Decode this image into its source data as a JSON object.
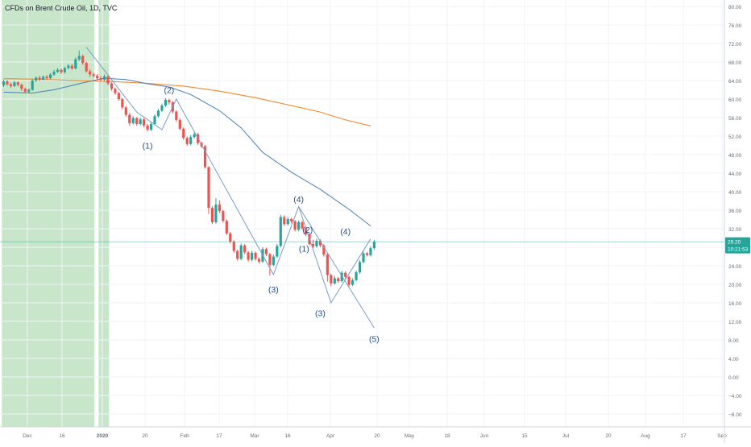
{
  "chart_data": {
    "type": "candlestick",
    "title": "CFDs on Brent Crude Oil, 1D, TVC",
    "colors": {
      "background": "#ffffff",
      "grid": "#f0f3fa",
      "up": "#26a69a",
      "down": "#ef5350",
      "highlight": "#c8e6c9",
      "ma_fast": "#4a7fb0",
      "ma_slow": "#f5862c",
      "wave_lines": "#7a9cc6",
      "wave_labels": "#1e4f8c",
      "price_badge": "#26a69a",
      "current_price_line": "#26a69a",
      "axis_text": "#6a6d78",
      "axis_line": "#d1d4dc"
    },
    "x_axis": {
      "ticks": [
        "Dec",
        "16",
        "2020",
        "20",
        "Feb",
        "17",
        "Mar",
        "16",
        "Apr",
        "20",
        "May",
        "18",
        "Jun",
        "15",
        "Jul",
        "20",
        "Aug",
        "17",
        "Sep"
      ],
      "bold": [
        "2020"
      ]
    },
    "y_axis": {
      "range": [
        -10,
        82
      ],
      "ticks": [
        "80.00",
        "76.00",
        "72.00",
        "68.00",
        "64.00",
        "60.00",
        "56.00",
        "52.00",
        "48.00",
        "44.00",
        "40.00",
        "36.00",
        "32.00",
        "28.00",
        "24.00",
        "20.00",
        "16.00",
        "12.00",
        "8.00",
        "4.00",
        "0.00",
        "−4.00",
        "−8.00"
      ]
    },
    "current_price": {
      "value": 29.2,
      "label": "29.20",
      "countdown": "10:21:53"
    },
    "candles": [
      [
        63.0,
        63.8,
        64.2,
        62.6
      ],
      [
        63.8,
        63.2,
        64.1,
        62.9
      ],
      [
        63.2,
        62.8,
        63.5,
        62.4
      ],
      [
        62.8,
        63.6,
        63.9,
        62.6
      ],
      [
        63.6,
        63.1,
        63.8,
        62.7
      ],
      [
        63.1,
        62.2,
        63.3,
        61.8
      ],
      [
        62.2,
        61.6,
        62.5,
        61.3
      ],
      [
        61.6,
        62.0,
        62.3,
        61.4
      ],
      [
        62.0,
        64.0,
        64.3,
        61.8
      ],
      [
        64.0,
        64.6,
        64.9,
        63.7
      ],
      [
        64.6,
        64.2,
        65.0,
        63.9
      ],
      [
        64.2,
        64.8,
        65.1,
        64.0
      ],
      [
        64.8,
        64.5,
        65.2,
        64.2
      ],
      [
        64.5,
        65.3,
        65.6,
        64.3
      ],
      [
        65.3,
        65.9,
        66.3,
        65.0
      ],
      [
        65.9,
        66.3,
        66.7,
        65.6
      ],
      [
        66.3,
        65.8,
        66.6,
        65.4
      ],
      [
        65.8,
        66.7,
        67.0,
        65.5
      ],
      [
        66.7,
        67.2,
        67.6,
        66.4
      ],
      [
        67.2,
        66.6,
        67.6,
        66.3
      ],
      [
        66.6,
        68.6,
        69.0,
        66.4
      ],
      [
        68.6,
        69.3,
        70.5,
        68.2
      ],
      [
        69.3,
        67.8,
        69.6,
        67.4
      ],
      [
        67.8,
        66.0,
        68.1,
        65.7
      ],
      [
        66.0,
        65.3,
        66.4,
        64.8
      ],
      [
        65.3,
        65.0,
        65.7,
        64.6
      ],
      [
        65.0,
        64.5,
        65.4,
        64.2
      ],
      [
        64.5,
        64.2,
        65.0,
        63.8
      ],
      [
        64.2,
        64.9,
        65.3,
        63.9
      ],
      [
        64.9,
        63.4,
        65.1,
        63.0
      ],
      [
        63.4,
        62.2,
        63.6,
        61.8
      ],
      [
        62.2,
        61.3,
        62.5,
        60.9
      ],
      [
        61.3,
        60.0,
        61.6,
        59.6
      ],
      [
        60.0,
        58.2,
        60.3,
        57.8
      ],
      [
        58.2,
        56.6,
        58.5,
        56.2
      ],
      [
        56.6,
        54.8,
        57.0,
        54.3
      ],
      [
        54.8,
        55.9,
        56.3,
        54.5
      ],
      [
        55.9,
        54.6,
        56.1,
        54.2
      ],
      [
        54.6,
        55.6,
        56.0,
        54.3
      ],
      [
        55.6,
        54.3,
        55.9,
        53.9
      ],
      [
        54.3,
        53.4,
        54.6,
        53.0
      ],
      [
        53.4,
        54.6,
        55.0,
        53.1
      ],
      [
        54.6,
        56.3,
        56.7,
        54.4
      ],
      [
        56.3,
        57.5,
        57.9,
        56.0
      ],
      [
        57.5,
        58.6,
        59.0,
        57.2
      ],
      [
        58.6,
        59.8,
        60.2,
        58.3
      ],
      [
        59.8,
        59.3,
        60.1,
        58.8
      ],
      [
        59.3,
        57.3,
        59.6,
        56.9
      ],
      [
        57.3,
        55.5,
        57.6,
        55.1
      ],
      [
        55.5,
        53.6,
        55.8,
        53.2
      ],
      [
        53.6,
        51.6,
        53.9,
        51.2
      ],
      [
        51.6,
        50.3,
        51.9,
        49.9
      ],
      [
        50.3,
        51.8,
        52.2,
        50.0
      ],
      [
        51.8,
        52.4,
        52.8,
        51.5
      ],
      [
        52.4,
        50.5,
        52.7,
        50.1
      ],
      [
        50.5,
        49.8,
        50.8,
        49.4
      ],
      [
        49.8,
        45.3,
        50.1,
        45.0
      ],
      [
        45.3,
        36.5,
        45.5,
        35.2
      ],
      [
        36.5,
        33.4,
        36.9,
        33.0
      ],
      [
        33.4,
        37.2,
        38.6,
        33.1
      ],
      [
        37.2,
        35.8,
        38.1,
        35.4
      ],
      [
        35.8,
        33.7,
        36.1,
        33.3
      ],
      [
        33.7,
        31.0,
        34.0,
        30.6
      ],
      [
        31.0,
        29.2,
        31.3,
        28.8
      ],
      [
        29.2,
        27.2,
        29.5,
        26.8
      ],
      [
        27.2,
        25.5,
        27.5,
        25.1
      ],
      [
        25.5,
        28.4,
        28.8,
        25.2
      ],
      [
        28.4,
        26.9,
        28.7,
        26.5
      ],
      [
        26.9,
        25.3,
        27.2,
        24.9
      ],
      [
        25.3,
        26.8,
        27.2,
        25.0
      ],
      [
        26.8,
        25.5,
        27.1,
        25.1
      ],
      [
        25.5,
        24.9,
        25.8,
        24.5
      ],
      [
        24.9,
        27.6,
        28.0,
        24.6
      ],
      [
        27.6,
        26.5,
        27.9,
        26.1
      ],
      [
        26.5,
        24.2,
        26.8,
        21.9
      ],
      [
        24.2,
        26.0,
        26.4,
        23.9
      ],
      [
        26.0,
        28.3,
        28.7,
        25.7
      ],
      [
        28.3,
        34.5,
        35.0,
        28.0
      ],
      [
        34.5,
        33.0,
        34.9,
        32.6
      ],
      [
        33.0,
        34.1,
        34.5,
        32.7
      ],
      [
        34.1,
        33.6,
        34.4,
        33.2
      ],
      [
        33.6,
        31.8,
        33.9,
        31.4
      ],
      [
        31.8,
        33.4,
        33.8,
        31.5
      ],
      [
        33.4,
        32.1,
        33.7,
        31.7
      ],
      [
        32.1,
        30.8,
        32.4,
        30.4
      ],
      [
        30.8,
        28.7,
        31.1,
        28.3
      ],
      [
        28.7,
        28.2,
        29.6,
        27.8
      ],
      [
        28.2,
        29.4,
        29.8,
        27.9
      ],
      [
        29.4,
        28.4,
        29.7,
        28.0
      ],
      [
        28.4,
        26.4,
        28.7,
        26.0
      ],
      [
        26.4,
        22.0,
        26.7,
        20.6
      ],
      [
        22.0,
        20.2,
        22.3,
        19.6
      ],
      [
        20.2,
        21.3,
        21.8,
        19.9
      ],
      [
        21.3,
        20.7,
        21.6,
        20.3
      ],
      [
        20.7,
        22.5,
        22.9,
        20.4
      ],
      [
        22.5,
        21.6,
        22.8,
        21.2
      ],
      [
        21.6,
        19.9,
        21.9,
        19.5
      ],
      [
        19.9,
        20.9,
        21.3,
        19.6
      ],
      [
        20.9,
        22.6,
        23.0,
        20.6
      ],
      [
        22.6,
        24.8,
        25.2,
        22.3
      ],
      [
        24.8,
        26.7,
        27.1,
        24.5
      ],
      [
        26.7,
        26.3,
        27.0,
        26.0
      ],
      [
        26.3,
        27.8,
        28.2,
        26.0
      ],
      [
        27.8,
        29.2,
        29.6,
        27.5
      ]
    ],
    "ma_fast": [
      [
        0,
        61.5
      ],
      [
        8,
        61.3
      ],
      [
        14,
        62.0
      ],
      [
        22,
        63.5
      ],
      [
        28,
        64.5
      ],
      [
        34,
        64.2
      ],
      [
        40,
        63.3
      ],
      [
        46,
        62.6
      ],
      [
        52,
        61.0
      ],
      [
        60,
        57.5
      ],
      [
        66,
        53.8
      ],
      [
        72,
        48.5
      ],
      [
        80,
        44.2
      ],
      [
        88,
        40.5
      ],
      [
        96,
        36.2
      ],
      [
        102,
        32.6
      ]
    ],
    "ma_slow": [
      [
        0,
        64.4
      ],
      [
        10,
        64.3
      ],
      [
        20,
        64.0
      ],
      [
        30,
        63.8
      ],
      [
        40,
        63.4
      ],
      [
        50,
        62.8
      ],
      [
        60,
        61.7
      ],
      [
        70,
        60.3
      ],
      [
        80,
        58.6
      ],
      [
        88,
        57.2
      ],
      [
        95,
        55.5
      ],
      [
        102,
        54.2
      ]
    ],
    "wave_lines": [
      [
        [
          23,
          71.2
        ],
        [
          37,
          57.2
        ],
        [
          44,
          53.4
        ],
        [
          48,
          60.0
        ],
        [
          75,
          22.1
        ],
        [
          82,
          36.8
        ],
        [
          103,
          10.6
        ]
      ],
      [
        [
          82,
          36.8
        ],
        [
          91,
          16.0
        ],
        [
          102,
          29.8
        ]
      ]
    ],
    "wave_labels": [
      {
        "text": "(1)",
        "x": 40,
        "y": 50.0
      },
      {
        "text": "(2)",
        "x": 46,
        "y": 62.0
      },
      {
        "text": "(3)",
        "x": 75,
        "y": 19.0
      },
      {
        "text": "(4)",
        "x": 82,
        "y": 38.4
      },
      {
        "text": "(2)",
        "x": 84.5,
        "y": 31.8
      },
      {
        "text": "(1)",
        "x": 83.5,
        "y": 27.7
      },
      {
        "text": "(3)",
        "x": 88,
        "y": 13.8
      },
      {
        "text": "(4)",
        "x": 95,
        "y": 31.5
      },
      {
        "text": "(5)",
        "x": 103,
        "y": 8.3
      }
    ],
    "highlight_bands": [
      {
        "from": 0,
        "to": 25.7
      },
      {
        "from": 26.9,
        "to": 29.8
      }
    ]
  }
}
